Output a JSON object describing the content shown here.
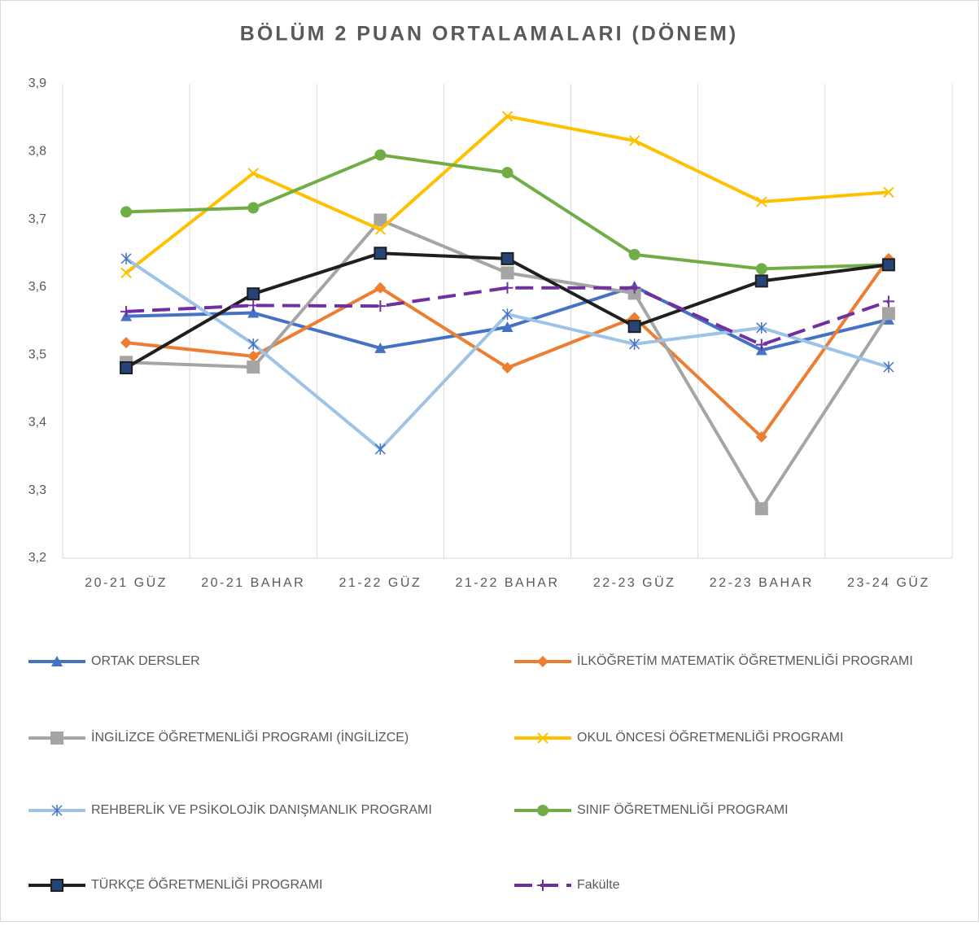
{
  "chart_data": {
    "type": "line",
    "title": "BÖLÜM 2 PUAN ORTALAMALARI (DÖNEM)",
    "categories": [
      "20-21 GÜZ",
      "20-21 BAHAR",
      "21-22 GÜZ",
      "21-22 BAHAR",
      "22-23 GÜZ",
      "22-23 BAHAR",
      "23-24 GÜZ"
    ],
    "ylim": [
      3.2,
      3.9
    ],
    "yticks": [
      {
        "value": 3.2,
        "label": "3,2"
      },
      {
        "value": 3.3,
        "label": "3,3"
      },
      {
        "value": 3.4,
        "label": "3,4"
      },
      {
        "value": 3.5,
        "label": "3,5"
      },
      {
        "value": 3.6,
        "label": "3,6"
      },
      {
        "value": 3.7,
        "label": "3,7"
      },
      {
        "value": 3.8,
        "label": "3,8"
      },
      {
        "value": 3.9,
        "label": "3,9"
      }
    ],
    "series": [
      {
        "name": "ORTAK DERSLER",
        "color": "#4472c4",
        "marker": "triangle",
        "values": [
          3.557,
          3.562,
          3.51,
          3.541,
          3.601,
          3.507,
          3.552
        ]
      },
      {
        "name": "İLKÖĞRETİM MATEMATİK ÖĞRETMENLİĞİ PROGRAMI",
        "color": "#ed7d31",
        "marker": "diamond",
        "values": [
          3.518,
          3.498,
          3.599,
          3.481,
          3.555,
          3.379,
          3.642
        ]
      },
      {
        "name": "İNGİLİZCE ÖĞRETMENLİĞİ PROGRAMI (İNGİLİZCE)",
        "color": "#a5a5a5",
        "marker": "square",
        "values": [
          3.489,
          3.482,
          3.699,
          3.621,
          3.591,
          3.273,
          3.561
        ]
      },
      {
        "name": "OKUL ÖNCESİ ÖĞRETMENLİĞİ PROGRAMI",
        "color": "#ffc000",
        "marker": "x",
        "values": [
          3.621,
          3.768,
          3.685,
          3.852,
          3.816,
          3.726,
          3.74
        ]
      },
      {
        "name": "REHBERLİK VE PSİKOLOJİK DANIŞMANLIK PROGRAMI",
        "color": "#9dc3e6",
        "marker": "star",
        "values": [
          3.642,
          3.516,
          3.361,
          3.56,
          3.516,
          3.54,
          3.482
        ]
      },
      {
        "name": "SINIF ÖĞRETMENLİĞİ PROGRAMI",
        "color": "#70ad47",
        "marker": "circle",
        "values": [
          3.711,
          3.717,
          3.795,
          3.769,
          3.648,
          3.627,
          3.633
        ]
      },
      {
        "name": "TÜRKÇE ÖĞRETMENLİĞİ PROGRAMI",
        "color": "#1f1f1f",
        "marker": "square",
        "values": [
          3.481,
          3.59,
          3.65,
          3.642,
          3.542,
          3.609,
          3.633
        ]
      },
      {
        "name": "Fakülte",
        "color": "#7030a0",
        "marker": "plus",
        "dash": true,
        "values": [
          3.564,
          3.573,
          3.572,
          3.599,
          3.599,
          3.515,
          3.579
        ]
      }
    ]
  }
}
